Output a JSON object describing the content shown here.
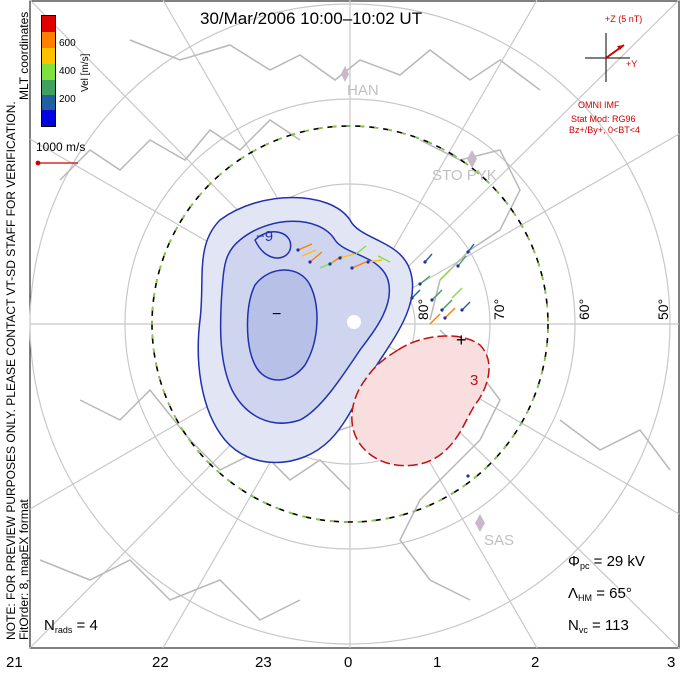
{
  "title": "30/Mar/2006  10:00–10:02 UT",
  "left_note_1": "NOTE: FOR PREVIEW PURPOSES ONLY. PLEASE CONTACT VT-SD STAFF FOR VERIFICATION.",
  "left_note_2": "FitOrder: 8, mapEX format",
  "left_note_3": "MLT coordinates",
  "colorbar": {
    "title": "Vel [m/s]",
    "ticks": [
      "600",
      "400",
      "200"
    ],
    "colors": [
      "#e00000",
      "#ff8000",
      "#ffc000",
      "#80e040",
      "#40a060",
      "#2060a0",
      "#0000e0"
    ]
  },
  "scale_vector": "1000 m/s",
  "imf": {
    "bz_label": "+Z (5 nT)",
    "by_label": "+Y",
    "source": "OMNI IMF",
    "model": "Stat Mod: RG96",
    "condition": "Bz+/By+, 0<BT<4"
  },
  "lat_labels": [
    "80°",
    "70°",
    "60°",
    "50°"
  ],
  "radars": [
    "HAN",
    "STO PYK",
    "SAS"
  ],
  "mlt_labels": [
    "21",
    "22",
    "23",
    "0",
    "1",
    "2",
    "3"
  ],
  "stats": {
    "phi_pc": "= 29 kV",
    "lambda_hm": "= 65°",
    "n_vc": "= 113",
    "n_rads": "= 4"
  },
  "stat_symbols": {
    "phi": "Φ",
    "phi_sub": "pc",
    "lambda": "Λ",
    "lambda_sub": "HM",
    "n": "N",
    "n_vc_sub": "vc",
    "n_rads_sub": "rads"
  },
  "contour_labels": [
    "−9",
    "−",
    "+",
    "3"
  ]
}
